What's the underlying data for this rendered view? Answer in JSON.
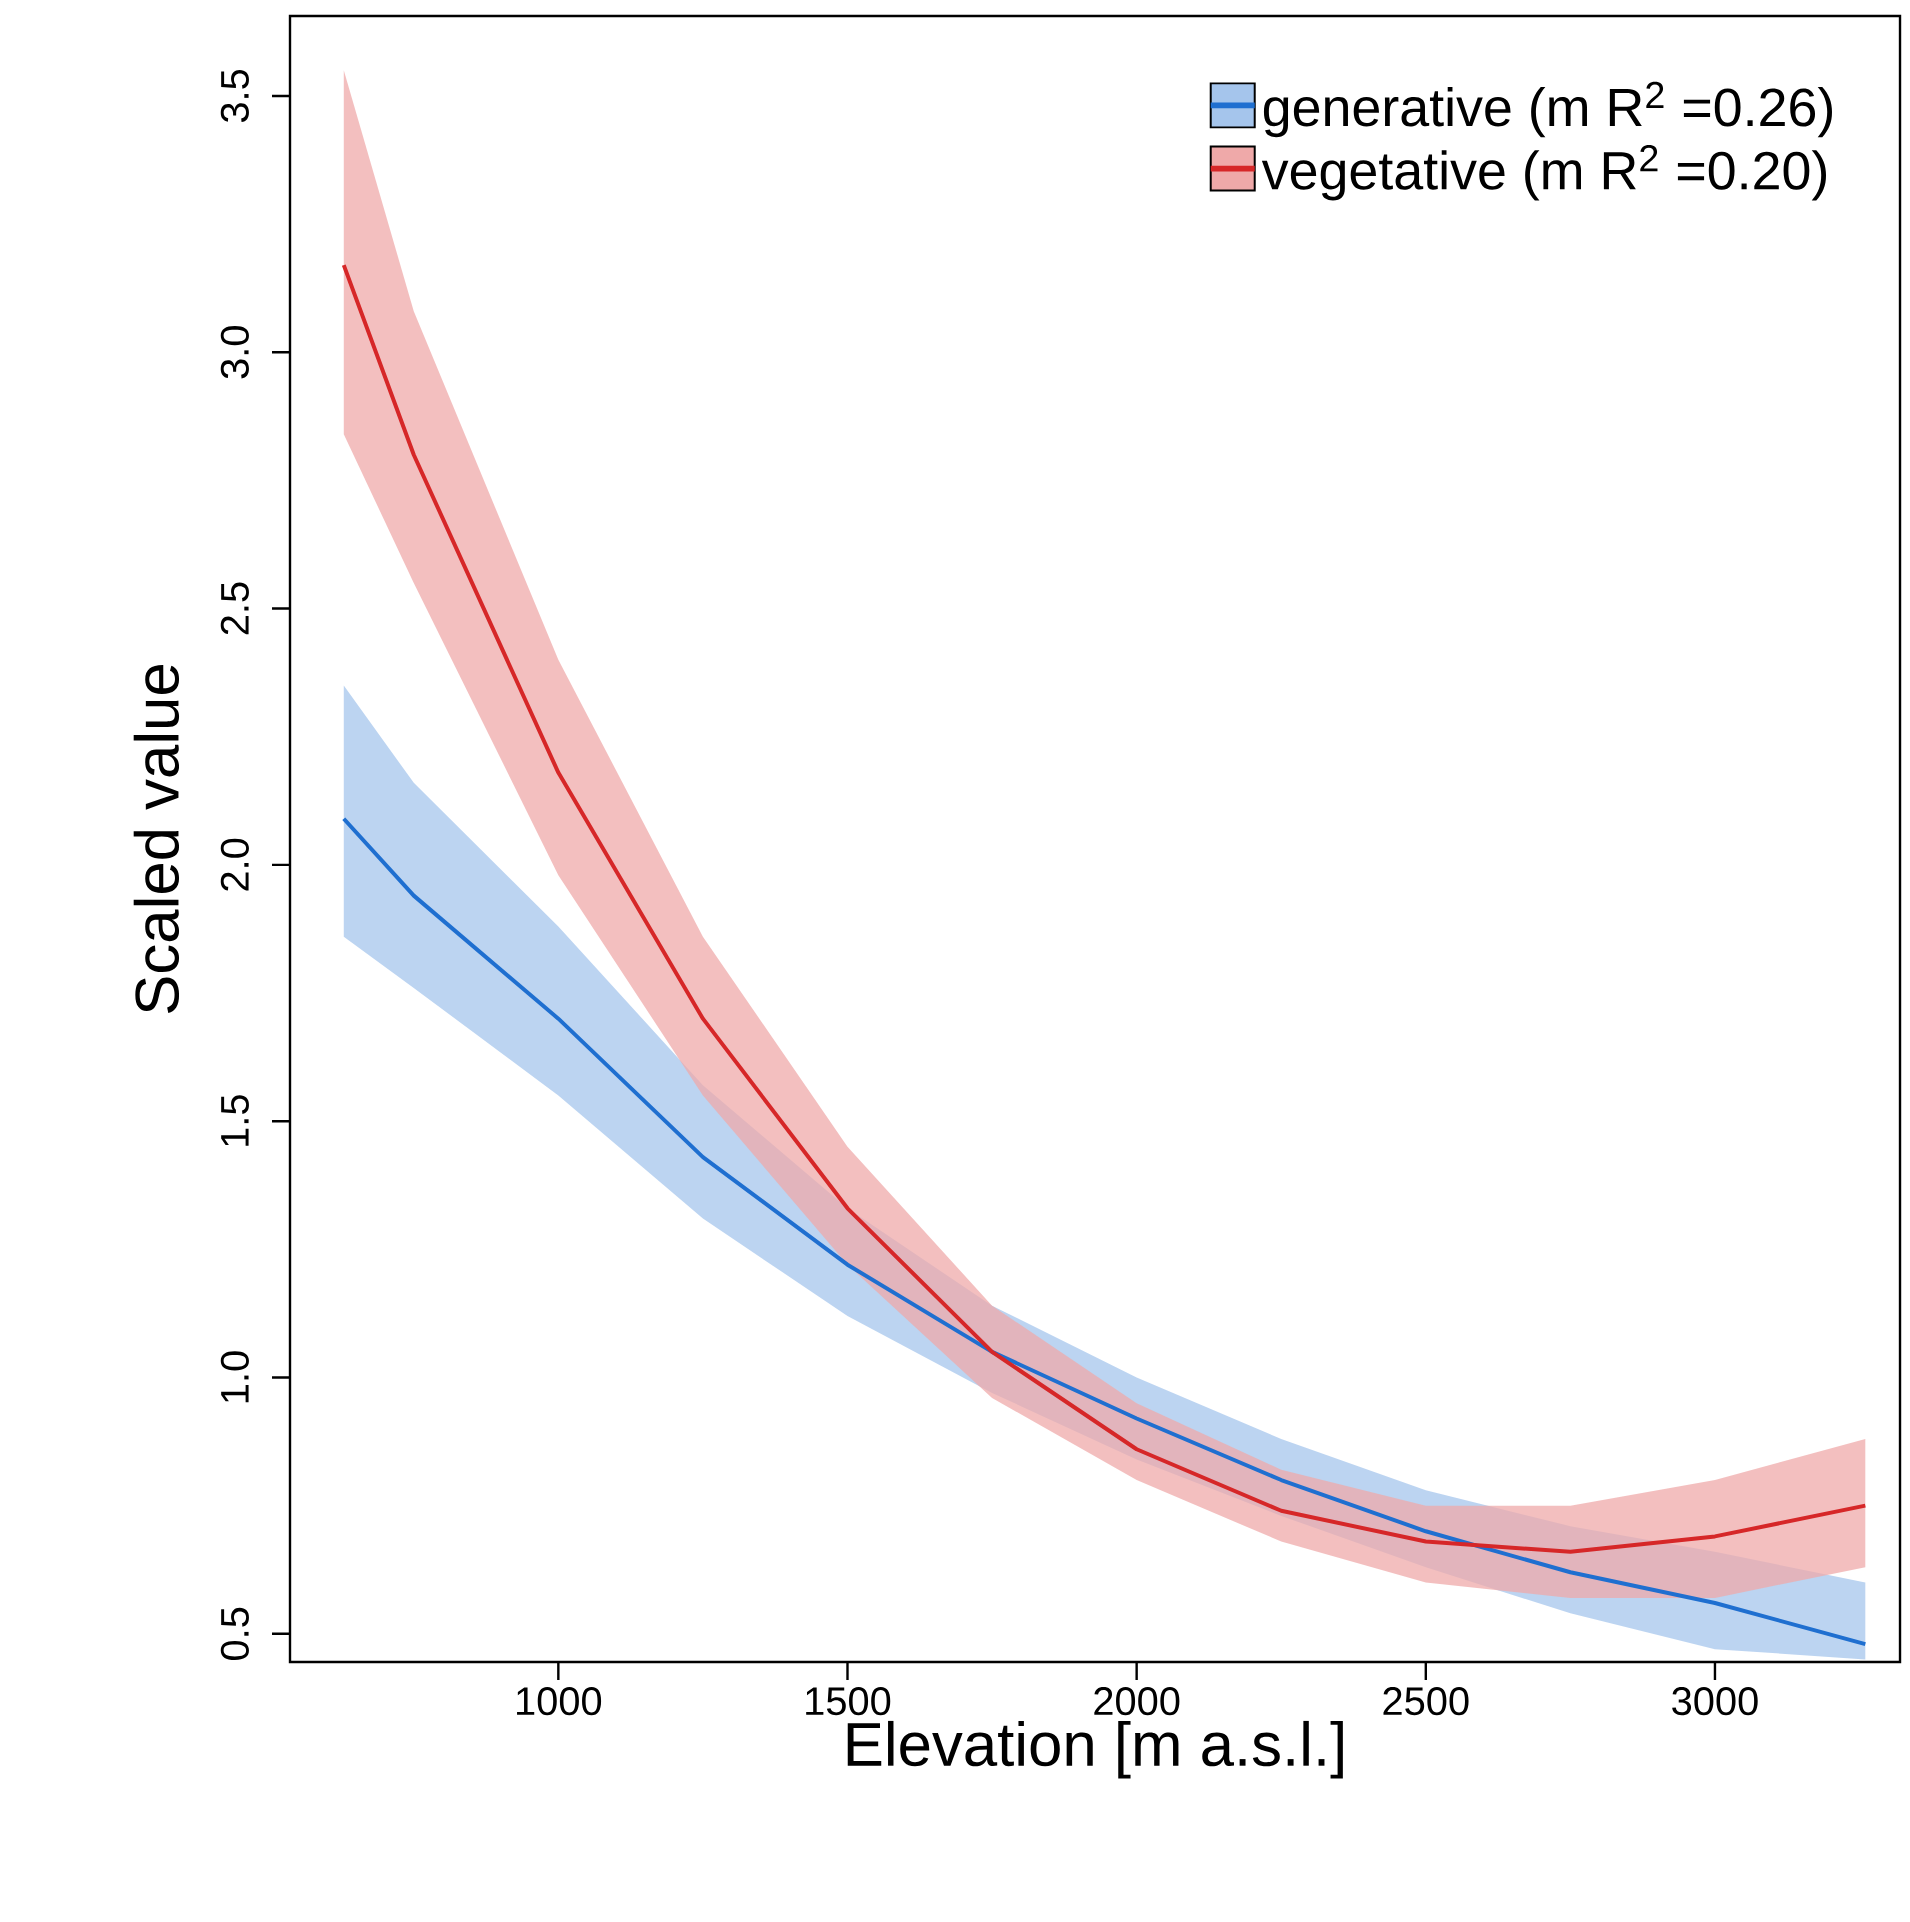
{
  "chart_data": {
    "type": "line",
    "xlabel": "Elevation [m a.s.l.]",
    "ylabel": "Scaled value",
    "xlim": [
      536,
      3320
    ],
    "ylim": [
      0.445,
      3.656
    ],
    "xticks": [
      1000,
      1500,
      2000,
      2500,
      3000
    ],
    "yticks": [
      0.5,
      {
        "value": 1.0,
        "label": "1.0"
      },
      1.5,
      {
        "value": 2.0,
        "label": "2.0"
      },
      2.5,
      {
        "value": 3.0,
        "label": "3.0"
      },
      3.5
    ],
    "legend": "top right",
    "marker": "none",
    "line_style": "solid",
    "series": [
      {
        "name": "generative (m R$^{2}$ =0.26)",
        "color": "#1f6fd0",
        "x": [
          629,
          750,
          1000,
          1250,
          1500,
          1750,
          2000,
          2250,
          2500,
          2750,
          3000,
          3260
        ],
        "values": [
          2.09,
          1.94,
          1.7,
          1.43,
          1.22,
          1.05,
          0.92,
          0.8,
          0.7,
          0.62,
          0.56,
          0.48
        ],
        "lower": [
          1.86,
          1.76,
          1.55,
          1.31,
          1.12,
          0.97,
          0.84,
          0.73,
          0.63,
          0.54,
          0.47,
          0.45
        ],
        "upper": [
          2.35,
          2.16,
          1.88,
          1.57,
          1.33,
          1.14,
          1.0,
          0.88,
          0.78,
          0.71,
          0.66,
          0.6
        ]
      },
      {
        "name": "vegetative (m R$^{2}$ =0.20)",
        "color": "#d62728",
        "x": [
          629,
          750,
          1000,
          1250,
          1500,
          1750,
          2000,
          2250,
          2500,
          2750,
          3000,
          3260
        ],
        "values": [
          3.17,
          2.8,
          2.18,
          1.7,
          1.33,
          1.05,
          0.86,
          0.74,
          0.68,
          0.66,
          0.69,
          0.75
        ],
        "lower": [
          2.84,
          2.55,
          1.98,
          1.55,
          1.22,
          0.96,
          0.8,
          0.68,
          0.6,
          0.57,
          0.57,
          0.63
        ],
        "upper": [
          3.55,
          3.08,
          2.4,
          1.86,
          1.45,
          1.14,
          0.95,
          0.82,
          0.75,
          0.75,
          0.8,
          0.88
        ]
      }
    ]
  }
}
